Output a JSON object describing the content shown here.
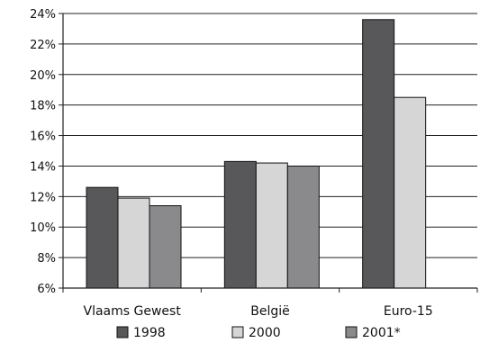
{
  "chart_data": {
    "type": "bar",
    "categories": [
      "Vlaams Gewest",
      "België",
      "Euro-15"
    ],
    "series": [
      {
        "name": "1998",
        "values": [
          12.6,
          14.3,
          23.6
        ],
        "color": "#58585a"
      },
      {
        "name": "2000",
        "values": [
          11.9,
          14.2,
          18.5
        ],
        "color": "#d6d6d6"
      },
      {
        "name": "2001*",
        "values": [
          11.4,
          14.0,
          null
        ],
        "color": "#8a8a8c"
      }
    ],
    "ylim": [
      6,
      24
    ],
    "yticks": [
      "6%",
      "8%",
      "10%",
      "12%",
      "14%",
      "16%",
      "18%",
      "20%",
      "22%",
      "24%"
    ],
    "grid": true,
    "legend": "bottom"
  }
}
